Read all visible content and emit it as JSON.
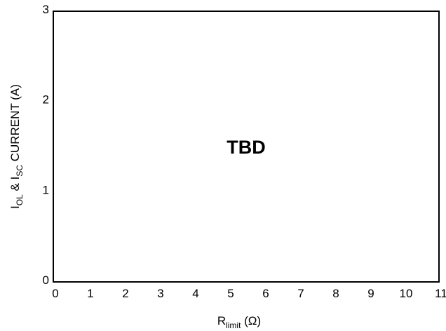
{
  "chart_data": {
    "type": "line",
    "series": [],
    "x_ticks": [
      "0",
      "1",
      "2",
      "3",
      "4",
      "5",
      "6",
      "7",
      "8",
      "9",
      "10",
      "11"
    ],
    "y_ticks": [
      "0",
      "1",
      "2",
      "3"
    ],
    "xlim": [
      0,
      11
    ],
    "ylim": [
      0,
      3
    ],
    "grid": false,
    "annotation": "TBD",
    "xlabel": {
      "main": "R",
      "sub": "limit",
      "unit": " (Ω)"
    },
    "ylabel": {
      "i1": "I",
      "s1": "OL",
      "mid": " & I",
      "s2": "SC",
      "rest": " CURRENT (A)"
    }
  }
}
